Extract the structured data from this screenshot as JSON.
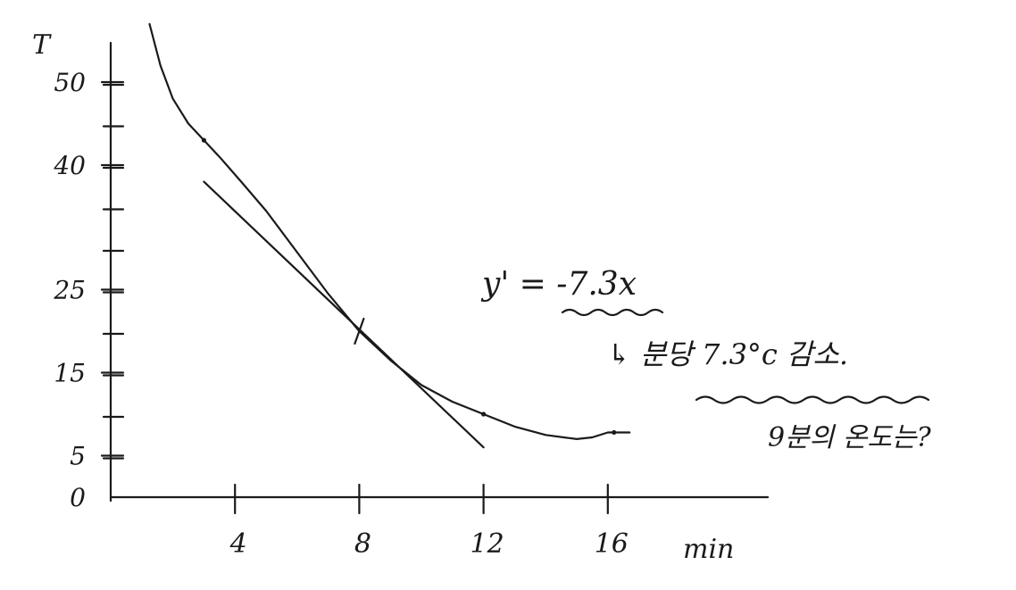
{
  "chart_data": {
    "type": "line",
    "ylabel": "T",
    "xlabel": "min",
    "y_ticks": [
      {
        "value": 0,
        "label": "0"
      },
      {
        "value": 5,
        "label": "5"
      },
      {
        "value": 15,
        "label": "15"
      },
      {
        "value": 25,
        "label": "25"
      },
      {
        "value": 40,
        "label": "40"
      },
      {
        "value": 50,
        "label": "50"
      }
    ],
    "x_ticks": [
      {
        "value": 4,
        "label": "4"
      },
      {
        "value": 8,
        "label": "8"
      },
      {
        "value": 12,
        "label": "12"
      },
      {
        "value": 16,
        "label": "16"
      }
    ],
    "xlim": [
      0,
      20
    ],
    "ylim": [
      0,
      58
    ],
    "series": [
      {
        "x": [
          1.25,
          1.6,
          2.0,
          2.5,
          3.0,
          3.5,
          4.2,
          5.0,
          6.0,
          7.0,
          8.0,
          9.0,
          10.0,
          11.0,
          12.0,
          13.0,
          14.0,
          15.0,
          15.5,
          16.0,
          16.7
        ],
        "y": [
          57,
          52,
          48,
          45,
          43,
          41,
          38,
          34.5,
          29.5,
          24.5,
          20,
          16.5,
          13.5,
          11.5,
          10,
          8.5,
          7.5,
          7,
          7.2,
          7.8,
          7.8
        ],
        "marked_points": [
          {
            "x": 3.0,
            "y": 43
          },
          {
            "x": 12.0,
            "y": 10
          },
          {
            "x": 16.2,
            "y": 7.8
          }
        ]
      }
    ],
    "tangent_line": {
      "x": [
        3.0,
        12.0
      ],
      "y": [
        38,
        6
      ],
      "point_of_tangency": {
        "x": 8.0,
        "y": 20
      }
    },
    "annotations": [
      {
        "text": "y' = -7.3x"
      },
      {
        "text": "↳ 분당 7.3°c 감소."
      },
      {
        "text": "9분의 온도는?"
      }
    ]
  }
}
